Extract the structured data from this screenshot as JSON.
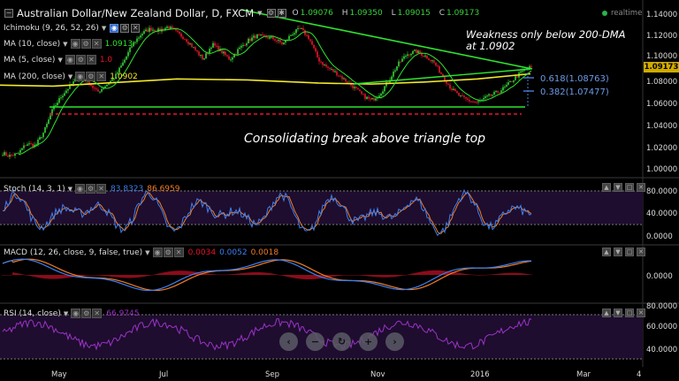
{
  "header": {
    "title": "Australian Dollar/New Zealand Dollar, D, FXCM",
    "ohlc": [
      {
        "label": "O",
        "value": "1.09076"
      },
      {
        "label": "H",
        "value": "1.09350"
      },
      {
        "label": "L",
        "value": "1.09015"
      },
      {
        "label": "C",
        "value": "1.09173"
      }
    ],
    "realtime": "realtime"
  },
  "indicators": {
    "ichimoku": "Ichimoku (9, 26, 52, 26)",
    "ma10": "MA (10, close)",
    "ma10_value": "1.0913",
    "ma5": "MA (5, close)",
    "ma5_value": "1.0",
    "ma200": "MA (200, close)",
    "ma200_value": "1.0902"
  },
  "annotations": {
    "weakness_line1": "Weakness only below 200-DMA",
    "weakness_line2": "at 1.0902",
    "fib618": "0.618(1.08763)",
    "fib382": "0.382(1.07477)",
    "consolidating": "Consolidating break above triangle top"
  },
  "price_axis": {
    "labels": [
      "1.14000",
      "1.12000",
      "1.10000",
      "1.08000",
      "1.06000",
      "1.04000",
      "1.02000",
      "1.00000"
    ],
    "current": "1.09173"
  },
  "stoch": {
    "label": "Stoch (14, 3, 1)",
    "k": "83.8323",
    "d": "86.6959",
    "axis": [
      "80.0000",
      "40.0000",
      "0.0000"
    ]
  },
  "macd": {
    "label": "MACD (12, 26, close, 9, false, true)",
    "hist": "0.0034",
    "macd": "0.0052",
    "signal": "0.0018",
    "axis": [
      "0.0000"
    ]
  },
  "rsi": {
    "label": "RSI (14, close)",
    "value": "66.9745",
    "axis": [
      "80.0000",
      "60.0000",
      "40.0000"
    ]
  },
  "time_axis": [
    "May",
    "Jul",
    "Sep",
    "Nov",
    "2016",
    "Mar",
    "4"
  ],
  "colors": {
    "up": "#37d43a",
    "down": "#e8142c",
    "ma200": "#f2e829",
    "trend": "#2ee52e",
    "support": "#e8142c",
    "stoch_k": "#3d7ff0",
    "stoch_d": "#f07d24",
    "rsi": "#9b32c8"
  },
  "chart_data": {
    "type": "candlestick",
    "ylim": [
      0.99,
      1.145
    ],
    "anchors": [
      [
        0,
        1.01
      ],
      [
        10,
        1.006
      ],
      [
        20,
        1.008
      ],
      [
        30,
        1.018
      ],
      [
        40,
        1.016
      ],
      [
        50,
        1.03
      ],
      [
        60,
        1.052
      ],
      [
        70,
        1.065
      ],
      [
        80,
        1.075
      ],
      [
        90,
        1.084
      ],
      [
        100,
        1.078
      ],
      [
        110,
        1.068
      ],
      [
        120,
        1.075
      ],
      [
        130,
        1.083
      ],
      [
        140,
        1.098
      ],
      [
        150,
        1.115
      ],
      [
        160,
        1.125
      ],
      [
        170,
        1.13
      ],
      [
        180,
        1.128
      ],
      [
        190,
        1.132
      ],
      [
        200,
        1.126
      ],
      [
        210,
        1.12
      ],
      [
        220,
        1.11
      ],
      [
        230,
        1.1
      ],
      [
        240,
        1.115
      ],
      [
        250,
        1.108
      ],
      [
        260,
        1.1
      ],
      [
        270,
        1.11
      ],
      [
        280,
        1.118
      ],
      [
        290,
        1.123
      ],
      [
        300,
        1.122
      ],
      [
        310,
        1.12
      ],
      [
        320,
        1.115
      ],
      [
        330,
        1.125
      ],
      [
        340,
        1.13
      ],
      [
        350,
        1.12
      ],
      [
        360,
        1.1
      ],
      [
        370,
        1.092
      ],
      [
        380,
        1.087
      ],
      [
        390,
        1.08
      ],
      [
        400,
        1.073
      ],
      [
        410,
        1.065
      ],
      [
        420,
        1.06
      ],
      [
        430,
        1.067
      ],
      [
        440,
        1.08
      ],
      [
        450,
        1.095
      ],
      [
        460,
        1.105
      ],
      [
        470,
        1.108
      ],
      [
        480,
        1.104
      ],
      [
        490,
        1.098
      ],
      [
        500,
        1.085
      ],
      [
        510,
        1.072
      ],
      [
        520,
        1.064
      ],
      [
        530,
        1.06
      ],
      [
        540,
        1.058
      ],
      [
        550,
        1.063
      ],
      [
        560,
        1.067
      ],
      [
        570,
        1.072
      ],
      [
        580,
        1.08
      ],
      [
        590,
        1.088
      ],
      [
        598,
        1.092
      ]
    ]
  }
}
